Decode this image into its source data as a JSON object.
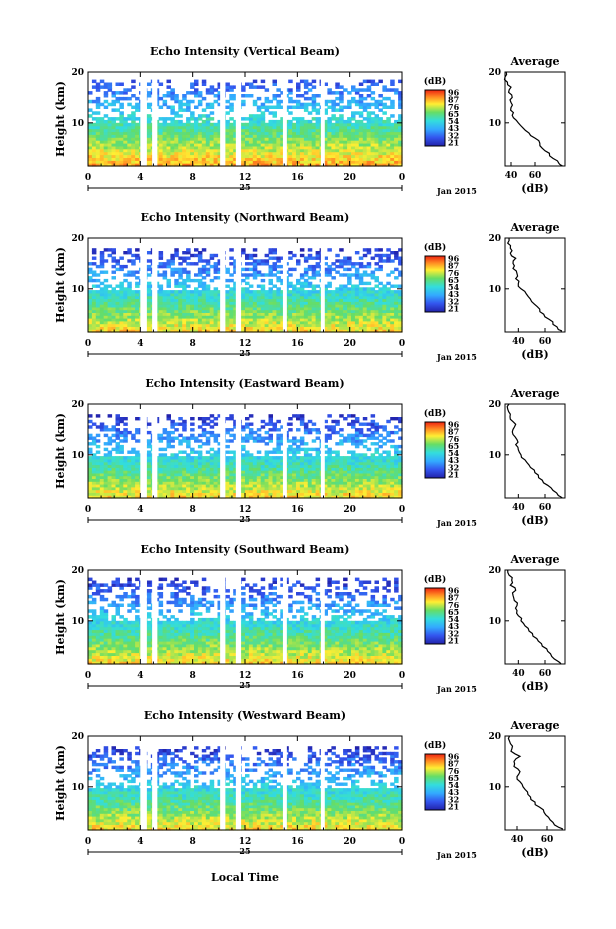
{
  "figure": {
    "height_label": "Height (km)",
    "time_label": "Local Time",
    "date_label": "Jan 2015",
    "colorbar_unit": "(dB)",
    "average_title": "Average",
    "average_xlabel": "(dB)"
  },
  "chart_data": [
    {
      "type": "heatmap",
      "panel": "vertical",
      "title": "Echo Intensity (Vertical Beam)",
      "xlabel": "Local Time",
      "ylabel": "Height (km)",
      "xlim": [
        0,
        24
      ],
      "ylim": [
        1.5,
        20
      ],
      "x_ticks": [
        "0",
        "4",
        "8",
        "12",
        "16",
        "20",
        "0"
      ],
      "day_label": "25",
      "date": "Jan 2015",
      "y_ticks": [
        "10",
        "20"
      ],
      "colorbar": {
        "unit": "(dB)",
        "ticks": [
          "96",
          "87",
          "76",
          "65",
          "54",
          "43",
          "32",
          "21"
        ],
        "range": [
          21,
          96
        ]
      },
      "top_height_km": 18.5,
      "gaps_hours": [
        [
          4.0,
          4.5
        ],
        [
          4.9,
          5.3
        ],
        [
          10.1,
          10.5
        ],
        [
          11.3,
          11.7
        ],
        [
          14.9,
          15.2
        ],
        [
          17.8,
          18.1
        ]
      ],
      "profile": {
        "title": "Average",
        "xlabel": "(dB)",
        "xticks": [
          "40",
          "60"
        ],
        "xlim": [
          35,
          85
        ],
        "yticks": [
          "10",
          "20"
        ],
        "height_km": [
          1.5,
          2,
          3,
          4,
          5,
          6,
          7,
          8,
          9,
          10,
          11,
          12,
          13,
          14,
          15,
          16,
          17,
          18,
          19,
          20
        ],
        "db": [
          83,
          80,
          75,
          72,
          66,
          64,
          60,
          55,
          50,
          46,
          42,
          42,
          40,
          40,
          41,
          38,
          40,
          37,
          35,
          36
        ]
      }
    },
    {
      "type": "heatmap",
      "panel": "northward",
      "title": "Echo Intensity (Northward Beam)",
      "xlabel": "Local Time",
      "ylabel": "Height (km)",
      "xlim": [
        0,
        24
      ],
      "ylim": [
        1.5,
        20
      ],
      "x_ticks": [
        "0",
        "4",
        "8",
        "12",
        "16",
        "20",
        "0"
      ],
      "day_label": "25",
      "date": "Jan 2015",
      "y_ticks": [
        "10",
        "20"
      ],
      "colorbar": {
        "unit": "(dB)",
        "ticks": [
          "96",
          "87",
          "76",
          "65",
          "54",
          "43",
          "32",
          "21"
        ],
        "range": [
          21,
          96
        ]
      },
      "top_height_km": 18.0,
      "gaps_hours": [
        [
          4.0,
          4.5
        ],
        [
          4.9,
          5.3
        ],
        [
          10.1,
          10.5
        ],
        [
          11.3,
          11.7
        ],
        [
          14.9,
          15.2
        ],
        [
          17.8,
          18.1
        ]
      ],
      "profile": {
        "title": "Average",
        "xlabel": "(dB)",
        "xticks": [
          "40",
          "60"
        ],
        "xlim": [
          30,
          75
        ],
        "yticks": [
          "10",
          "20"
        ],
        "height_km": [
          1.5,
          2,
          3,
          4,
          5,
          6,
          7,
          8,
          9,
          10,
          11,
          12,
          13,
          14,
          15,
          16,
          17,
          18,
          19,
          20
        ],
        "db": [
          72,
          70,
          66,
          63,
          59,
          56,
          52,
          49,
          46,
          42,
          40,
          38,
          39,
          36,
          36,
          38,
          34,
          34,
          32,
          33
        ]
      }
    },
    {
      "type": "heatmap",
      "panel": "eastward",
      "title": "Echo Intensity (Eastward Beam)",
      "xlabel": "Local Time",
      "ylabel": "Height (km)",
      "xlim": [
        0,
        24
      ],
      "ylim": [
        1.5,
        20
      ],
      "x_ticks": [
        "0",
        "4",
        "8",
        "12",
        "16",
        "20",
        "0"
      ],
      "day_label": "25",
      "date": "Jan 2015",
      "y_ticks": [
        "10",
        "20"
      ],
      "colorbar": {
        "unit": "(dB)",
        "ticks": [
          "96",
          "87",
          "76",
          "65",
          "54",
          "43",
          "32",
          "21"
        ],
        "range": [
          21,
          96
        ]
      },
      "top_height_km": 18.0,
      "gaps_hours": [
        [
          4.0,
          4.5
        ],
        [
          4.9,
          5.3
        ],
        [
          10.1,
          10.5
        ],
        [
          11.3,
          11.7
        ],
        [
          14.9,
          15.2
        ],
        [
          17.8,
          18.1
        ]
      ],
      "profile": {
        "title": "Average",
        "xlabel": "(dB)",
        "xticks": [
          "40",
          "60"
        ],
        "xlim": [
          30,
          75
        ],
        "yticks": [
          "10",
          "20"
        ],
        "height_km": [
          1.5,
          2,
          3,
          4,
          5,
          6,
          7,
          8,
          9,
          10,
          11,
          12,
          13,
          14,
          15,
          16,
          17,
          18,
          19,
          20
        ],
        "db": [
          73,
          70,
          66,
          62,
          58,
          55,
          52,
          48,
          45,
          42,
          40,
          38,
          39,
          36,
          36,
          38,
          34,
          34,
          32,
          33
        ]
      }
    },
    {
      "type": "heatmap",
      "panel": "southward",
      "title": "Echo Intensity (Southward Beam)",
      "xlabel": "Local Time",
      "ylabel": "Height (km)",
      "xlim": [
        0,
        24
      ],
      "ylim": [
        1.5,
        20
      ],
      "x_ticks": [
        "0",
        "4",
        "8",
        "12",
        "16",
        "20",
        "0"
      ],
      "day_label": "25",
      "date": "Jan 2015",
      "y_ticks": [
        "10",
        "20"
      ],
      "colorbar": {
        "unit": "(dB)",
        "ticks": [
          "96",
          "87",
          "76",
          "65",
          "54",
          "43",
          "32",
          "21"
        ],
        "range": [
          21,
          96
        ]
      },
      "top_height_km": 18.5,
      "gaps_hours": [
        [
          4.0,
          4.5
        ],
        [
          4.9,
          5.3
        ],
        [
          10.1,
          10.5
        ],
        [
          11.3,
          11.7
        ],
        [
          14.9,
          15.2
        ],
        [
          17.8,
          18.1
        ]
      ],
      "profile": {
        "title": "Average",
        "xlabel": "(dB)",
        "xticks": [
          "40",
          "60"
        ],
        "xlim": [
          30,
          75
        ],
        "yticks": [
          "10",
          "20"
        ],
        "height_km": [
          1.5,
          2,
          3,
          4,
          5,
          6,
          7,
          8,
          9,
          10,
          11,
          12,
          13,
          14,
          15,
          16,
          17,
          18,
          19,
          20
        ],
        "db": [
          72,
          70,
          65,
          62,
          58,
          55,
          51,
          48,
          45,
          42,
          40,
          39,
          39,
          37,
          36,
          38,
          34,
          35,
          33,
          32
        ]
      }
    },
    {
      "type": "heatmap",
      "panel": "westward",
      "title": "Echo Intensity (Westward Beam)",
      "xlabel": "Local Time",
      "ylabel": "Height (km)",
      "xlim": [
        0,
        24
      ],
      "ylim": [
        1.5,
        20
      ],
      "x_ticks": [
        "0",
        "4",
        "8",
        "12",
        "16",
        "20",
        "0"
      ],
      "day_label": "25",
      "date": "Jan 2015",
      "y_ticks": [
        "10",
        "20"
      ],
      "colorbar": {
        "unit": "(dB)",
        "ticks": [
          "96",
          "87",
          "76",
          "65",
          "54",
          "43",
          "32",
          "21"
        ],
        "range": [
          21,
          96
        ]
      },
      "top_height_km": 18.0,
      "gaps_hours": [
        [
          4.0,
          4.5
        ],
        [
          4.9,
          5.3
        ],
        [
          10.1,
          10.5
        ],
        [
          11.3,
          11.7
        ],
        [
          14.9,
          15.2
        ],
        [
          17.8,
          18.1
        ]
      ],
      "profile": {
        "title": "Average",
        "xlabel": "(dB)",
        "xticks": [
          "40",
          "60"
        ],
        "xlim": [
          32,
          72
        ],
        "yticks": [
          "10",
          "20"
        ],
        "height_km": [
          1.5,
          2,
          3,
          4,
          5,
          6,
          7,
          8,
          9,
          10,
          11,
          12,
          13,
          14,
          15,
          16,
          17,
          18,
          19,
          20
        ],
        "db": [
          70,
          68,
          64,
          61,
          58,
          55,
          52,
          49,
          47,
          44,
          42,
          40,
          42,
          38,
          38,
          42,
          36,
          37,
          35,
          35
        ]
      }
    }
  ]
}
